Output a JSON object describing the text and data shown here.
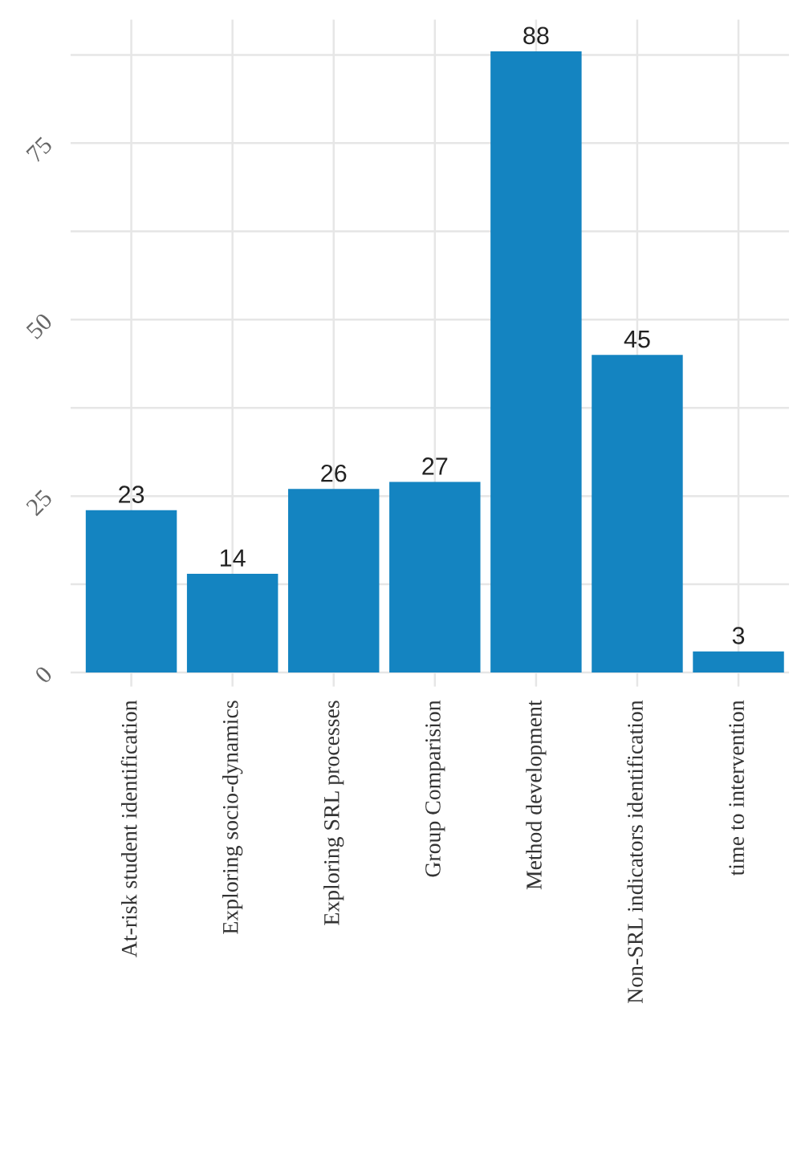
{
  "chart_data": {
    "type": "bar",
    "categories": [
      "At-risk student identification",
      "Exploring socio-dynamics",
      "Exploring SRL processes",
      "Group Comparision",
      "Method development",
      "Non-SRL indicators identification",
      "time to intervention"
    ],
    "values": [
      23,
      14,
      26,
      27,
      88,
      45,
      3
    ],
    "color": "#1484c1",
    "ylim": [
      -2,
      92.5
    ],
    "yticks": [
      0,
      {
        "value": 12.5,
        "label": null
      },
      25,
      {
        "value": 37.5,
        "label": null
      },
      50,
      {
        "value": 62.5,
        "label": null
      },
      75,
      {
        "value": 87.5,
        "label": null
      }
    ],
    "grid": true,
    "data_labels": true
  }
}
